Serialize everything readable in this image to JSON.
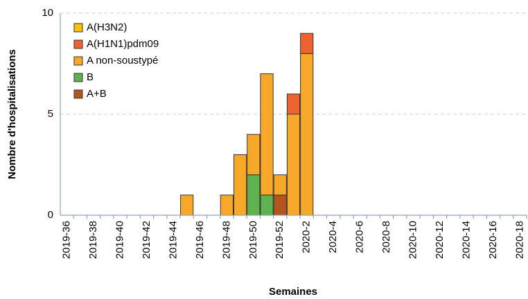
{
  "chart_data": {
    "type": "stacked-bar",
    "x_label": "Semaines",
    "y_label": "Nombre d'hospitalisations",
    "categories": [
      "2019-36",
      null,
      "2019-38",
      null,
      "2019-40",
      null,
      "2019-42",
      null,
      "2019-44",
      null,
      "2019-46",
      null,
      "2019-48",
      null,
      "2019-50",
      null,
      "2019-52",
      null,
      "2020-2",
      null,
      "2020-4",
      null,
      "2020-6",
      null,
      "2020-8",
      null,
      "2020-10",
      null,
      "2020-12",
      null,
      "2020-14",
      null,
      "2020-16",
      null,
      "2020-18"
    ],
    "series": [
      {
        "name": "A(H3N2)",
        "color": "#ffc000",
        "values": [
          0,
          0,
          0,
          0,
          0,
          0,
          0,
          0,
          0,
          0,
          0,
          0,
          0,
          0,
          0,
          0,
          0,
          0,
          0,
          0,
          0,
          0,
          0,
          0,
          0,
          0,
          0,
          0,
          0,
          0,
          0,
          0,
          0,
          0,
          0
        ]
      },
      {
        "name": "A(H1N1)pdm09",
        "color": "#ee6130",
        "values": [
          0,
          0,
          0,
          0,
          0,
          0,
          0,
          0,
          0,
          0,
          0,
          0,
          0,
          0,
          0,
          0,
          0,
          1,
          1,
          0,
          0,
          0,
          0,
          0,
          0,
          0,
          0,
          0,
          0,
          0,
          0,
          0,
          0,
          0,
          0
        ]
      },
      {
        "name": "A non-soustypé",
        "color": "#f8a829",
        "values": [
          0,
          0,
          0,
          0,
          0,
          0,
          0,
          0,
          0,
          1,
          0,
          0,
          1,
          3,
          2,
          6,
          1,
          5,
          8,
          0,
          0,
          0,
          0,
          0,
          0,
          0,
          0,
          0,
          0,
          0,
          0,
          0,
          0,
          0,
          0
        ]
      },
      {
        "name": "B",
        "color": "#5fb250",
        "values": [
          0,
          0,
          0,
          0,
          0,
          0,
          0,
          0,
          0,
          0,
          0,
          0,
          0,
          0,
          2,
          1,
          0,
          0,
          0,
          0,
          0,
          0,
          0,
          0,
          0,
          0,
          0,
          0,
          0,
          0,
          0,
          0,
          0,
          0,
          0
        ]
      },
      {
        "name": "A+B",
        "color": "#b4541f",
        "values": [
          0,
          0,
          0,
          0,
          0,
          0,
          0,
          0,
          0,
          0,
          0,
          0,
          0,
          0,
          0,
          0,
          1,
          0,
          0,
          0,
          0,
          0,
          0,
          0,
          0,
          0,
          0,
          0,
          0,
          0,
          0,
          0,
          0,
          0,
          0
        ]
      }
    ],
    "ylim": [
      0,
      10
    ],
    "yticks": [
      0,
      5,
      10
    ],
    "grid": true
  }
}
